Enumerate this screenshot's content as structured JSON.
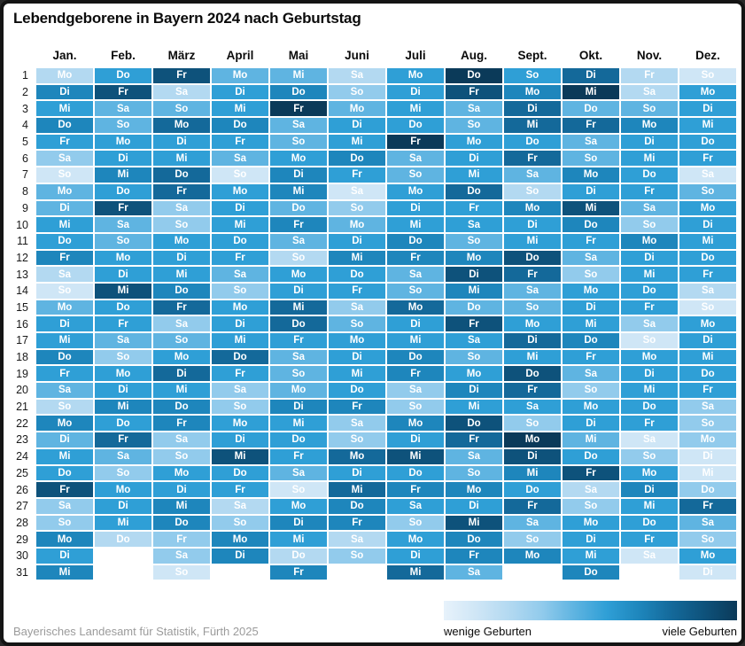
{
  "title": "Lebendgeborene in Bayern 2024 nach Geburtstag",
  "source": "Bayerisches Landesamt für Statistik, Fürth 2025",
  "legend": {
    "left_label": "wenige Geburten",
    "right_label": "viele Geburten"
  },
  "palette": [
    "#e7f2fb",
    "#cfe6f6",
    "#b3d9f1",
    "#92cbec",
    "#5fb4e1",
    "#2f9fd6",
    "#1e86bc",
    "#14699a",
    "#0e527b",
    "#0b3a59"
  ],
  "chart_data": {
    "type": "heatmap",
    "title": "Lebendgeborene in Bayern 2024 nach Geburtstag",
    "x_categories": [
      "Jan.",
      "Feb.",
      "März",
      "April",
      "Mai",
      "Juni",
      "Juli",
      "Aug.",
      "Sept.",
      "Okt.",
      "Nov.",
      "Dez."
    ],
    "y_categories": [
      1,
      2,
      3,
      4,
      5,
      6,
      7,
      8,
      9,
      10,
      11,
      12,
      13,
      14,
      15,
      16,
      17,
      18,
      19,
      20,
      21,
      22,
      23,
      24,
      25,
      26,
      27,
      28,
      29,
      30,
      31
    ],
    "value_scale": "relative birth count level 0-9: 0 = wenige Geburten (hellblau), 9 = viele Geburten (dunkelblau)",
    "legend_position": "bottom-right",
    "months": [
      {
        "label": "Jan.",
        "weekdays": [
          "Mo",
          "Di",
          "Mi",
          "Do",
          "Fr",
          "Sa",
          "So",
          "Mo",
          "Di",
          "Mi",
          "Do",
          "Fr",
          "Sa",
          "So",
          "Mo",
          "Di",
          "Mi",
          "Do",
          "Fr",
          "Sa",
          "So",
          "Mo",
          "Di",
          "Mi",
          "Do",
          "Fr",
          "Sa",
          "So",
          "Mo",
          "Di",
          "Mi"
        ],
        "levels": [
          2,
          6,
          5,
          6,
          5,
          3,
          1,
          4,
          4,
          5,
          5,
          6,
          2,
          1,
          4,
          5,
          5,
          6,
          5,
          4,
          2,
          6,
          4,
          5,
          5,
          8,
          3,
          3,
          6,
          5,
          6
        ]
      },
      {
        "label": "Feb.",
        "weekdays": [
          "Do",
          "Fr",
          "Sa",
          "So",
          "Mo",
          "Di",
          "Mi",
          "Do",
          "Fr",
          "Sa",
          "So",
          "Mo",
          "Di",
          "Mi",
          "Do",
          "Fr",
          "Sa",
          "So",
          "Mo",
          "Di",
          "Mi",
          "Do",
          "Fr",
          "Sa",
          "So",
          "Mo",
          "Di",
          "Mi",
          "Do"
        ],
        "levels": [
          5,
          8,
          4,
          4,
          5,
          5,
          6,
          5,
          8,
          4,
          4,
          5,
          5,
          8,
          5,
          5,
          4,
          3,
          5,
          5,
          6,
          5,
          7,
          4,
          3,
          5,
          5,
          5,
          2
        ]
      },
      {
        "label": "März",
        "weekdays": [
          "Fr",
          "Sa",
          "So",
          "Mo",
          "Di",
          "Mi",
          "Do",
          "Fr",
          "Sa",
          "So",
          "Mo",
          "Di",
          "Mi",
          "Do",
          "Fr",
          "Sa",
          "So",
          "Mo",
          "Di",
          "Mi",
          "Do",
          "Fr",
          "Sa",
          "So",
          "Mo",
          "Di",
          "Mi",
          "Do",
          "Fr",
          "Sa",
          "So"
        ],
        "levels": [
          8,
          2,
          4,
          7,
          5,
          5,
          7,
          7,
          3,
          3,
          5,
          5,
          5,
          6,
          7,
          3,
          4,
          5,
          7,
          5,
          6,
          6,
          3,
          3,
          5,
          5,
          6,
          6,
          3,
          3,
          1
        ]
      },
      {
        "label": "April",
        "weekdays": [
          "Mo",
          "Di",
          "Mi",
          "Do",
          "Fr",
          "Sa",
          "So",
          "Mo",
          "Di",
          "Mi",
          "Do",
          "Fr",
          "Sa",
          "So",
          "Mo",
          "Di",
          "Mi",
          "Do",
          "Fr",
          "Sa",
          "So",
          "Mo",
          "Di",
          "Mi",
          "Do",
          "Fr",
          "Sa",
          "So",
          "Mo",
          "Di"
        ],
        "levels": [
          4,
          5,
          5,
          6,
          5,
          4,
          1,
          5,
          5,
          5,
          5,
          5,
          4,
          3,
          5,
          5,
          5,
          7,
          5,
          3,
          3,
          5,
          5,
          8,
          5,
          5,
          2,
          3,
          6,
          6
        ]
      },
      {
        "label": "Mai",
        "weekdays": [
          "Mi",
          "Do",
          "Fr",
          "Sa",
          "So",
          "Mo",
          "Di",
          "Mi",
          "Do",
          "Fr",
          "Sa",
          "So",
          "Mo",
          "Di",
          "Mi",
          "Do",
          "Fr",
          "Sa",
          "So",
          "Mo",
          "Di",
          "Mi",
          "Do",
          "Fr",
          "Sa",
          "So",
          "Mo",
          "Di",
          "Mi",
          "Do",
          "Fr"
        ],
        "levels": [
          4,
          6,
          9,
          4,
          4,
          5,
          6,
          6,
          4,
          6,
          4,
          2,
          5,
          5,
          7,
          7,
          5,
          4,
          4,
          4,
          6,
          5,
          5,
          5,
          4,
          1,
          5,
          6,
          5,
          2,
          6
        ]
      },
      {
        "label": "Juni",
        "weekdays": [
          "Sa",
          "So",
          "Mo",
          "Di",
          "Mi",
          "Do",
          "Fr",
          "Sa",
          "So",
          "Mo",
          "Di",
          "Mi",
          "Do",
          "Fr",
          "Sa",
          "So",
          "Mo",
          "Di",
          "Mi",
          "Do",
          "Fr",
          "Sa",
          "So",
          "Mo",
          "Di",
          "Mi",
          "Do",
          "Fr",
          "Sa",
          "So"
        ],
        "levels": [
          2,
          3,
          4,
          5,
          5,
          6,
          5,
          1,
          3,
          4,
          5,
          6,
          5,
          5,
          3,
          4,
          5,
          5,
          5,
          5,
          6,
          3,
          3,
          7,
          5,
          7,
          6,
          6,
          2,
          3
        ]
      },
      {
        "label": "Juli",
        "weekdays": [
          "Mo",
          "Di",
          "Mi",
          "Do",
          "Fr",
          "Sa",
          "So",
          "Mo",
          "Di",
          "Mi",
          "Do",
          "Fr",
          "Sa",
          "So",
          "Mo",
          "Di",
          "Mi",
          "Do",
          "Fr",
          "Sa",
          "So",
          "Mo",
          "Di",
          "Mi",
          "Do",
          "Fr",
          "Sa",
          "So",
          "Mo",
          "Di",
          "Mi"
        ],
        "levels": [
          5,
          5,
          5,
          5,
          9,
          4,
          4,
          5,
          5,
          5,
          6,
          6,
          4,
          4,
          7,
          5,
          5,
          6,
          6,
          3,
          3,
          6,
          5,
          8,
          5,
          6,
          5,
          3,
          5,
          5,
          7
        ]
      },
      {
        "label": "Aug.",
        "weekdays": [
          "Do",
          "Fr",
          "Sa",
          "So",
          "Mo",
          "Di",
          "Mi",
          "Do",
          "Fr",
          "Sa",
          "So",
          "Mo",
          "Di",
          "Mi",
          "Do",
          "Fr",
          "Sa",
          "So",
          "Mo",
          "Di",
          "Mi",
          "Do",
          "Fr",
          "Sa",
          "So",
          "Mo",
          "Di",
          "Mi",
          "Do",
          "Fr",
          "Sa"
        ],
        "levels": [
          9,
          8,
          4,
          4,
          5,
          5,
          5,
          7,
          5,
          5,
          4,
          6,
          8,
          6,
          4,
          8,
          5,
          4,
          5,
          6,
          5,
          8,
          7,
          4,
          4,
          6,
          5,
          8,
          6,
          6,
          4
        ]
      },
      {
        "label": "Sept.",
        "weekdays": [
          "So",
          "Mo",
          "Di",
          "Mi",
          "Do",
          "Fr",
          "Sa",
          "So",
          "Mo",
          "Di",
          "Mi",
          "Do",
          "Fr",
          "Sa",
          "So",
          "Mo",
          "Di",
          "Mi",
          "Do",
          "Fr",
          "Sa",
          "So",
          "Mo",
          "Di",
          "Mi",
          "Do",
          "Fr",
          "Sa",
          "So",
          "Mo"
        ],
        "levels": [
          5,
          6,
          7,
          7,
          5,
          7,
          4,
          2,
          6,
          5,
          5,
          8,
          7,
          4,
          4,
          5,
          7,
          5,
          8,
          7,
          5,
          3,
          9,
          8,
          6,
          5,
          7,
          4,
          3,
          6
        ]
      },
      {
        "label": "Okt.",
        "weekdays": [
          "Di",
          "Mi",
          "Do",
          "Fr",
          "Sa",
          "So",
          "Mo",
          "Di",
          "Mi",
          "Do",
          "Fr",
          "Sa",
          "So",
          "Mo",
          "Di",
          "Mi",
          "Do",
          "Fr",
          "Sa",
          "So",
          "Mo",
          "Di",
          "Mi",
          "Do",
          "Fr",
          "Sa",
          "So",
          "Mo",
          "Di",
          "Mi",
          "Do"
        ],
        "levels": [
          7,
          9,
          4,
          7,
          4,
          4,
          6,
          5,
          8,
          6,
          5,
          4,
          3,
          5,
          5,
          5,
          6,
          5,
          4,
          3,
          5,
          5,
          4,
          5,
          8,
          2,
          3,
          5,
          5,
          5,
          6
        ]
      },
      {
        "label": "Nov.",
        "weekdays": [
          "Fr",
          "Sa",
          "So",
          "Mo",
          "Di",
          "Mi",
          "Do",
          "Fr",
          "Sa",
          "So",
          "Mo",
          "Di",
          "Mi",
          "Do",
          "Fr",
          "Sa",
          "So",
          "Mo",
          "Di",
          "Mi",
          "Do",
          "Fr",
          "Sa",
          "So",
          "Mo",
          "Di",
          "Mi",
          "Do",
          "Fr",
          "Sa"
        ],
        "levels": [
          2,
          2,
          4,
          6,
          5,
          5,
          5,
          5,
          4,
          3,
          6,
          5,
          5,
          5,
          5,
          3,
          1,
          5,
          5,
          5,
          5,
          5,
          1,
          3,
          5,
          6,
          5,
          5,
          5,
          1
        ]
      },
      {
        "label": "Dez.",
        "weekdays": [
          "So",
          "Mo",
          "Di",
          "Mi",
          "Do",
          "Fr",
          "Sa",
          "So",
          "Mo",
          "Di",
          "Mi",
          "Do",
          "Fr",
          "Sa",
          "So",
          "Mo",
          "Di",
          "Mi",
          "Do",
          "Fr",
          "Sa",
          "So",
          "Mo",
          "Di",
          "Mi",
          "Do",
          "Fr",
          "Sa",
          "So",
          "Mo",
          "Di"
        ],
        "levels": [
          1,
          5,
          5,
          5,
          5,
          5,
          1,
          4,
          5,
          5,
          5,
          5,
          5,
          2,
          1,
          5,
          5,
          5,
          5,
          5,
          3,
          3,
          3,
          1,
          1,
          3,
          7,
          4,
          3,
          5,
          1
        ]
      }
    ]
  }
}
